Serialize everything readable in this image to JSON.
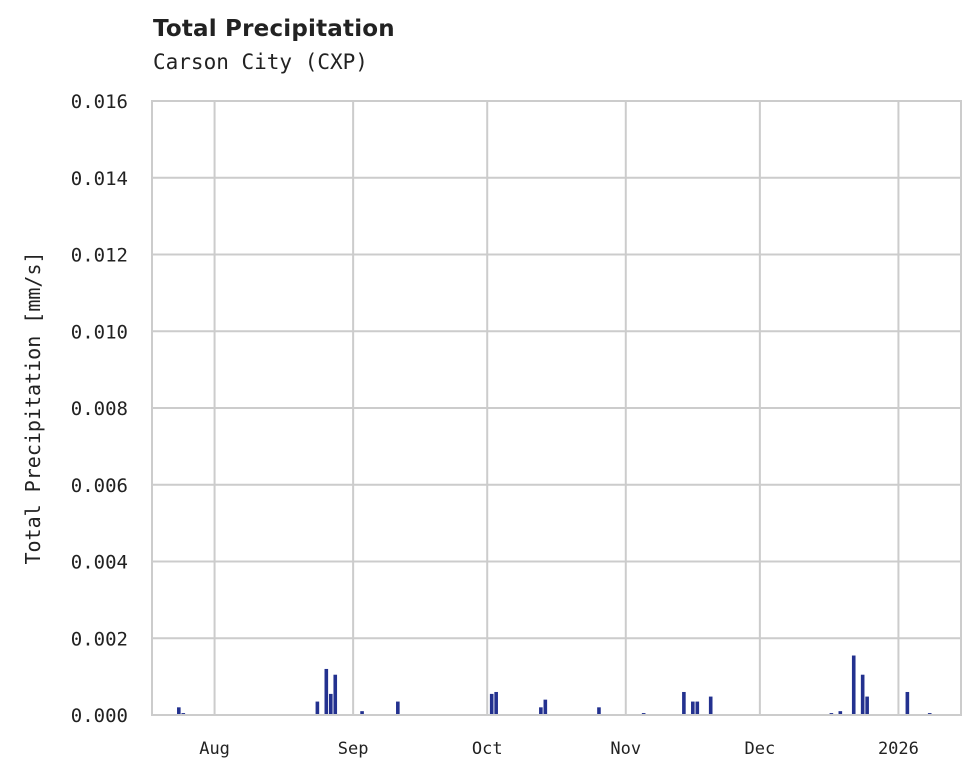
{
  "chart_data": {
    "type": "bar",
    "title": "Total Precipitation",
    "subtitle": "Carson City (CXP)",
    "xlabel": "",
    "ylabel": "Total Precipitation [mm/s]",
    "ylim": [
      0,
      0.016
    ],
    "xlim": [
      "2025-07-18",
      "2026-01-15"
    ],
    "grid": true,
    "legend": null,
    "color": "#23318f",
    "yticks": [
      "0.000",
      "0.002",
      "0.004",
      "0.006",
      "0.008",
      "0.010",
      "0.012",
      "0.014",
      "0.016"
    ],
    "xticks": [
      {
        "label": "Aug",
        "date": "2025-08-01"
      },
      {
        "label": "Sep",
        "date": "2025-09-01"
      },
      {
        "label": "Oct",
        "date": "2025-10-01"
      },
      {
        "label": "Nov",
        "date": "2025-11-01"
      },
      {
        "label": "Dec",
        "date": "2025-12-01"
      },
      {
        "label": "2026",
        "date": "2026-01-01"
      }
    ],
    "series": [
      {
        "name": "Total Precipitation",
        "points": [
          {
            "date": "2025-07-24",
            "value": 0.0002
          },
          {
            "date": "2025-07-25",
            "value": 5e-05
          },
          {
            "date": "2025-08-24",
            "value": 0.00035
          },
          {
            "date": "2025-08-26",
            "value": 0.0012
          },
          {
            "date": "2025-08-27",
            "value": 0.00055
          },
          {
            "date": "2025-08-28",
            "value": 0.00105
          },
          {
            "date": "2025-09-03",
            "value": 0.0001
          },
          {
            "date": "2025-09-11",
            "value": 0.00035
          },
          {
            "date": "2025-10-02",
            "value": 0.00055
          },
          {
            "date": "2025-10-03",
            "value": 0.0006
          },
          {
            "date": "2025-10-13",
            "value": 0.0002
          },
          {
            "date": "2025-10-14",
            "value": 0.0004
          },
          {
            "date": "2025-10-26",
            "value": 0.0002
          },
          {
            "date": "2025-11-05",
            "value": 5e-05
          },
          {
            "date": "2025-11-14",
            "value": 0.0006
          },
          {
            "date": "2025-11-16",
            "value": 0.00035
          },
          {
            "date": "2025-11-17",
            "value": 0.00035
          },
          {
            "date": "2025-11-20",
            "value": 0.00048
          },
          {
            "date": "2025-12-17",
            "value": 5e-05
          },
          {
            "date": "2025-12-19",
            "value": 0.0001
          },
          {
            "date": "2025-12-22",
            "value": 0.00155
          },
          {
            "date": "2025-12-24",
            "value": 0.00105
          },
          {
            "date": "2025-12-25",
            "value": 0.00048
          },
          {
            "date": "2026-01-03",
            "value": 0.0006
          },
          {
            "date": "2026-01-08",
            "value": 5e-05
          }
        ]
      }
    ]
  }
}
